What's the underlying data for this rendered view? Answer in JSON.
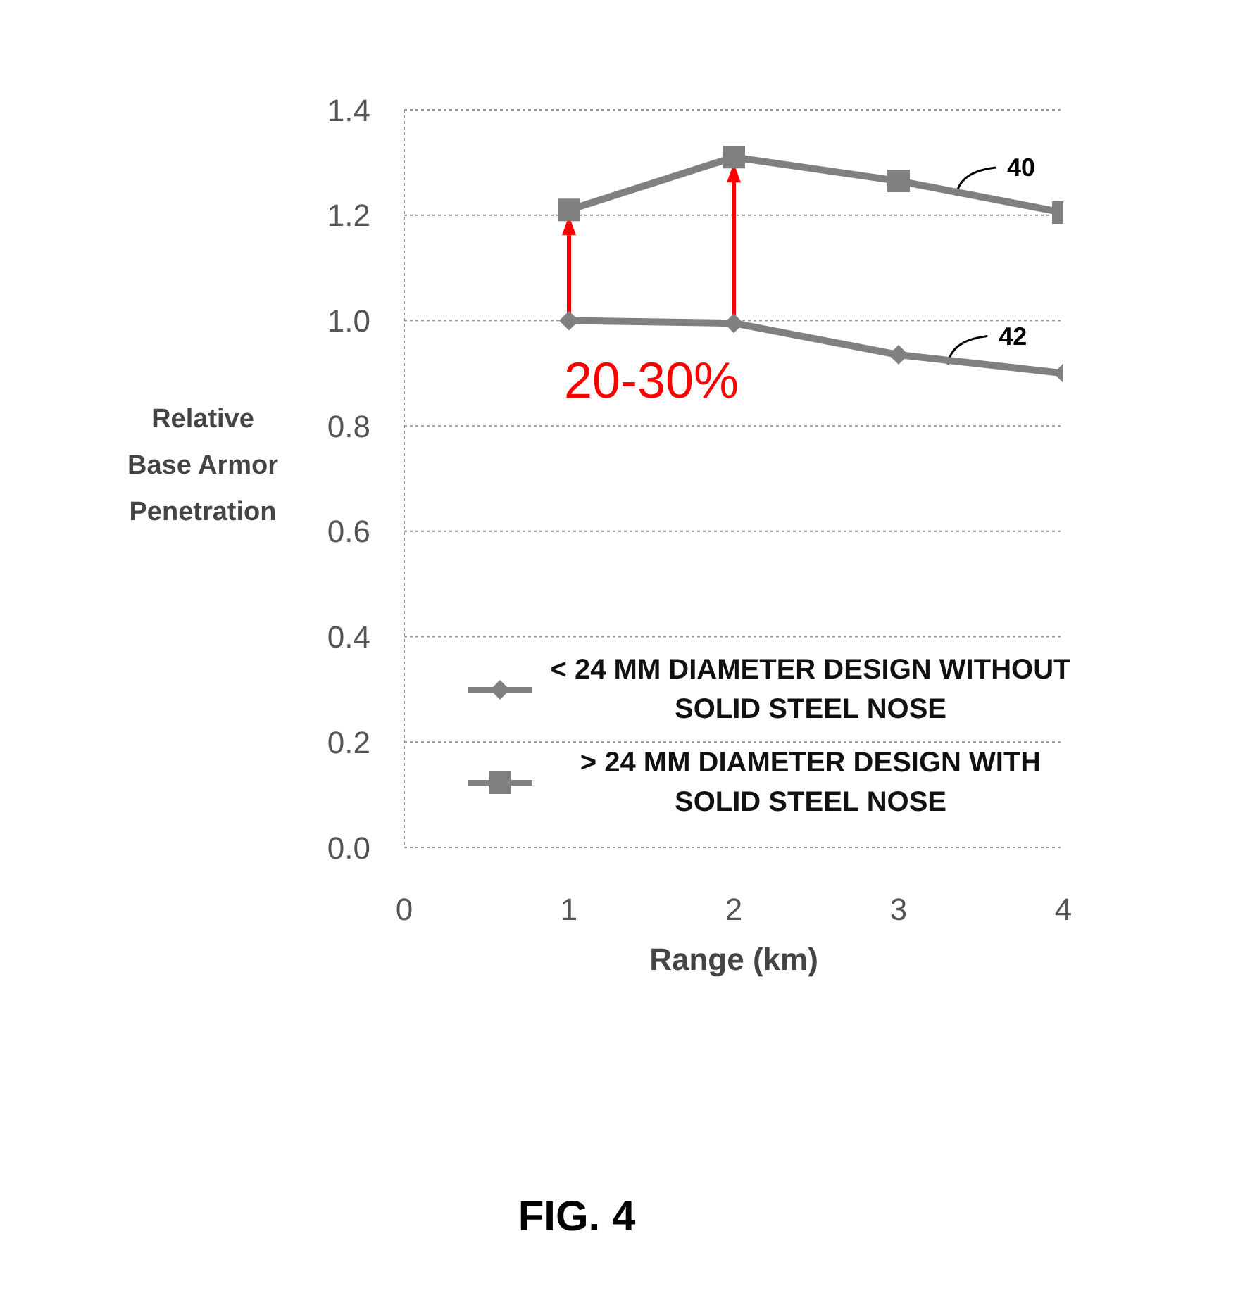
{
  "chart_data": {
    "type": "line",
    "xlabel": "Range (km)",
    "ylabel": "Relative Base Armor Penetration",
    "x": [
      1,
      2,
      3,
      4
    ],
    "xlim": [
      0,
      4
    ],
    "xticks": [
      0,
      1,
      2,
      3,
      4
    ],
    "ylim": [
      0,
      1.4
    ],
    "yticks": [
      {
        "value": 0,
        "label": "0.0"
      },
      {
        "value": 0.2,
        "label": "0.2"
      },
      {
        "value": 0.4,
        "label": "0.4"
      },
      {
        "value": 0.6,
        "label": "0.6"
      },
      {
        "value": 0.8,
        "label": "0.8"
      },
      {
        "value": 1,
        "label": "1.0"
      },
      {
        "value": 1.2,
        "label": "1.2"
      },
      {
        "value": 1.4,
        "label": "1.4"
      }
    ],
    "grid": "y",
    "legend": "bottom right",
    "series": [
      {
        "name": "< 24 MM DIAMETER DESIGN WITHOUT SOLID STEEL NOSE",
        "color": "#808080",
        "marker": "diamond",
        "values": [
          1.0,
          0.995,
          0.935,
          0.9
        ]
      },
      {
        "name": "> 24 MM DIAMETER DESIGN WITH SOLID STEEL NOSE",
        "color": "#808080",
        "marker": "square",
        "values": [
          1.21,
          1.31,
          1.265,
          1.205
        ]
      }
    ],
    "annotations": [
      "20-30%",
      {
        "text": "40",
        "x": 3.35,
        "y": 1.245
      },
      {
        "text": "42",
        "x": 3.3,
        "y": 0.925
      },
      "FIG. 4"
    ]
  }
}
